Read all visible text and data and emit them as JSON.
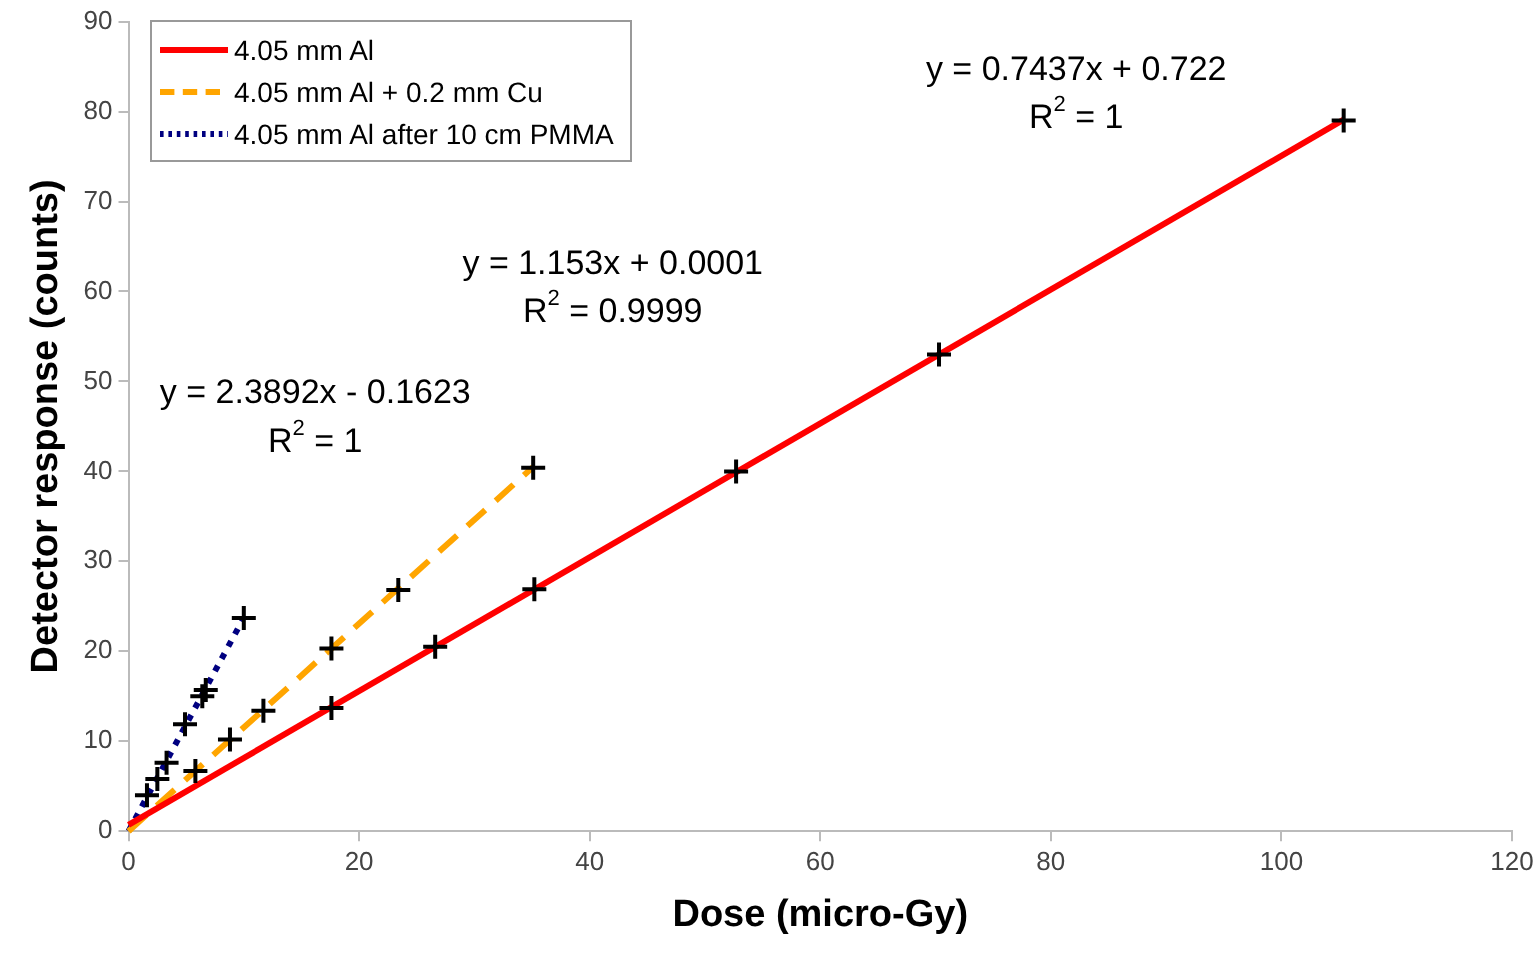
{
  "chart_data": {
    "type": "line",
    "xlabel": "Dose (micro-Gy)",
    "ylabel": "Detector response (counts)",
    "xlim": [
      0,
      120
    ],
    "xticks": [
      0,
      20,
      40,
      60,
      80,
      100,
      120
    ],
    "ylim": [
      0,
      90
    ],
    "yticks": [
      0,
      10,
      20,
      30,
      40,
      50,
      60,
      70,
      80,
      90
    ],
    "grid": false,
    "legend": "top left",
    "series": [
      {
        "name": "4.05 mm Al",
        "color": "#ff0000",
        "line_style": "solid",
        "marker": "none",
        "x": [
          0,
          105.4
        ],
        "values": [
          0.7,
          79.1
        ]
      },
      {
        "name": "4.05 mm Al + 0.2 mm Cu",
        "color": "#ffa500",
        "line_style": "dashed",
        "marker": "none",
        "x": [
          0,
          35.1
        ],
        "values": [
          0,
          40.5
        ]
      },
      {
        "name": "4.05 mm Al after 10 cm PMMA",
        "color": "#000080",
        "line_style": "dotted",
        "marker": "none",
        "x": [
          0,
          9.9
        ],
        "values": [
          0,
          23.5
        ]
      },
      {
        "type": "scatter",
        "color": "#000000",
        "marker": "cross",
        "x": [
          17.6,
          26.6,
          35.2,
          52.7,
          70.3,
          105.4
        ],
        "values": [
          13.7,
          20.5,
          26.9,
          40,
          53,
          79
        ]
      },
      {
        "type": "scatter",
        "color": "#000000",
        "marker": "cross",
        "x": [
          5.8,
          8.8,
          11.7,
          17.6,
          23.4,
          35.1
        ],
        "values": [
          6.7,
          10.2,
          13.4,
          20.3,
          26.8,
          40.4
        ]
      },
      {
        "type": "scatter",
        "color": "#000000",
        "marker": "cross",
        "x": [
          1.6,
          2.5,
          3.3,
          4.9,
          6.4,
          6.7,
          10.0
        ],
        "values": [
          4.0,
          5.8,
          7.6,
          11.9,
          15.0,
          15.7,
          23.7
        ]
      }
    ],
    "annotations": [
      "y = 0.7437x + 0.722",
      "R$^{2}$ = 1",
      "y = 1.153x + 0.0001",
      "R$^{2}$ = 0.9999",
      "y = 2.3892x - 0.1623",
      "R$^{2}$ = 1"
    ]
  }
}
